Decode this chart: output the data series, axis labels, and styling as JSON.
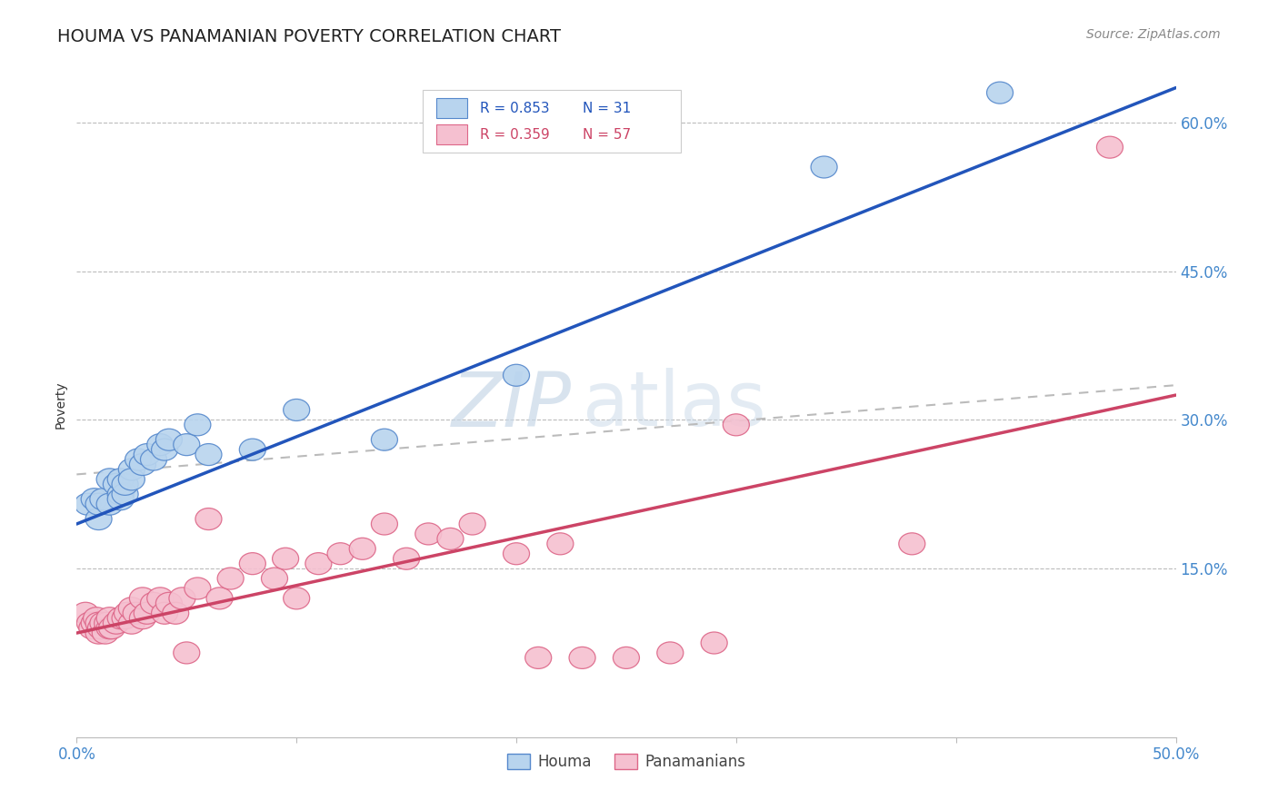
{
  "title": "HOUMA VS PANAMANIAN POVERTY CORRELATION CHART",
  "source": "Source: ZipAtlas.com",
  "ylabel": "Poverty",
  "xlim": [
    0.0,
    0.5
  ],
  "ylim": [
    -0.02,
    0.65
  ],
  "yticks": [
    0.15,
    0.3,
    0.45,
    0.6
  ],
  "ytick_labels": [
    "15.0%",
    "30.0%",
    "45.0%",
    "60.0%"
  ],
  "houma_R": "0.853",
  "houma_N": "31",
  "panamanian_R": "0.359",
  "panamanian_N": "57",
  "houma_color": "#b8d4ee",
  "houma_edge_color": "#5588cc",
  "panamanian_color": "#f5c0d0",
  "panamanian_edge_color": "#dd6688",
  "line_houma_color": "#2255bb",
  "line_panamanian_color": "#cc4466",
  "line_dashed_color": "#bbbbbb",
  "watermark_zip": "ZIP",
  "watermark_atlas": "atlas",
  "background_color": "#ffffff",
  "grid_color": "#bbbbbb",
  "tick_label_color": "#4488cc",
  "houma_points_x": [
    0.005,
    0.008,
    0.01,
    0.01,
    0.012,
    0.015,
    0.015,
    0.018,
    0.02,
    0.02,
    0.02,
    0.022,
    0.022,
    0.025,
    0.025,
    0.028,
    0.03,
    0.032,
    0.035,
    0.038,
    0.04,
    0.042,
    0.05,
    0.055,
    0.06,
    0.08,
    0.1,
    0.14,
    0.2,
    0.34,
    0.42
  ],
  "houma_points_y": [
    0.215,
    0.22,
    0.2,
    0.215,
    0.22,
    0.24,
    0.215,
    0.235,
    0.225,
    0.24,
    0.22,
    0.225,
    0.235,
    0.25,
    0.24,
    0.26,
    0.255,
    0.265,
    0.26,
    0.275,
    0.27,
    0.28,
    0.275,
    0.295,
    0.265,
    0.27,
    0.31,
    0.28,
    0.345,
    0.555,
    0.63
  ],
  "panamanian_points_x": [
    0.004,
    0.006,
    0.007,
    0.008,
    0.009,
    0.01,
    0.01,
    0.011,
    0.012,
    0.013,
    0.014,
    0.015,
    0.015,
    0.016,
    0.018,
    0.02,
    0.022,
    0.023,
    0.025,
    0.025,
    0.027,
    0.03,
    0.03,
    0.032,
    0.035,
    0.038,
    0.04,
    0.042,
    0.045,
    0.048,
    0.05,
    0.055,
    0.06,
    0.065,
    0.07,
    0.08,
    0.09,
    0.095,
    0.1,
    0.11,
    0.12,
    0.13,
    0.14,
    0.15,
    0.16,
    0.17,
    0.18,
    0.2,
    0.21,
    0.22,
    0.23,
    0.25,
    0.27,
    0.29,
    0.3,
    0.38,
    0.47
  ],
  "panamanian_points_y": [
    0.105,
    0.095,
    0.09,
    0.095,
    0.1,
    0.085,
    0.095,
    0.09,
    0.095,
    0.085,
    0.095,
    0.09,
    0.1,
    0.09,
    0.095,
    0.1,
    0.1,
    0.105,
    0.095,
    0.11,
    0.105,
    0.1,
    0.12,
    0.105,
    0.115,
    0.12,
    0.105,
    0.115,
    0.105,
    0.12,
    0.065,
    0.13,
    0.2,
    0.12,
    0.14,
    0.155,
    0.14,
    0.16,
    0.12,
    0.155,
    0.165,
    0.17,
    0.195,
    0.16,
    0.185,
    0.18,
    0.195,
    0.165,
    0.06,
    0.175,
    0.06,
    0.06,
    0.065,
    0.075,
    0.295,
    0.175,
    0.575
  ],
  "houma_line_x": [
    0.0,
    0.5
  ],
  "houma_line_y": [
    0.195,
    0.635
  ],
  "panamanian_line_x": [
    0.0,
    0.5
  ],
  "panamanian_line_y": [
    0.085,
    0.325
  ],
  "dashed_line_x": [
    0.0,
    0.5
  ],
  "dashed_line_y": [
    0.245,
    0.335
  ]
}
